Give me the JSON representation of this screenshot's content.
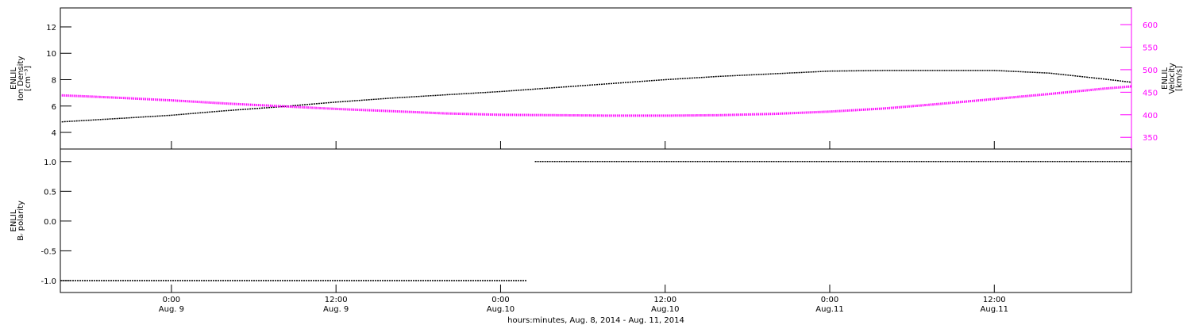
{
  "chart_data": [
    {
      "type": "line",
      "ylabel": [
        "ENLIL",
        "Ion Density",
        "[cm⁻³]"
      ],
      "y2label": [
        "ENLIL",
        "Velocity",
        "[km/s]"
      ],
      "xlim": [
        15.9,
        94
      ],
      "xticks": [
        24,
        36,
        48,
        60,
        72,
        84
      ],
      "ylim": [
        2.74,
        13.44
      ],
      "yticks": [
        4,
        6,
        8,
        10,
        12
      ],
      "y2lim": [
        324,
        637
      ],
      "y2ticks": [
        350,
        400,
        450,
        500,
        550,
        600
      ],
      "y2color": "#ff00ff",
      "x": [
        16,
        20,
        24,
        28,
        32,
        36,
        40,
        44,
        48,
        52,
        56,
        60,
        64,
        68,
        72,
        76,
        80,
        84,
        88,
        92,
        94
      ],
      "series": [
        {
          "color": "#000000",
          "values": [
            4.8,
            5.05,
            5.3,
            5.65,
            5.95,
            6.3,
            6.6,
            6.85,
            7.1,
            7.4,
            7.7,
            8.0,
            8.25,
            8.45,
            8.65,
            8.7,
            8.7,
            8.7,
            8.5,
            8.05,
            7.8
          ]
        },
        {
          "color": "#ff00ff",
          "axis": "y2",
          "values": [
            443,
            438,
            432,
            425,
            419,
            413,
            408,
            403,
            400,
            399,
            398,
            398,
            399,
            402,
            407,
            414,
            424,
            435,
            446,
            458,
            463
          ]
        }
      ]
    },
    {
      "type": "line",
      "ylabel": [
        "ENLIL",
        "Bᵣ polarity"
      ],
      "xlabel": "hours:minutes, Aug.  8, 2014 - Aug. 11, 2014",
      "xlim": [
        15.9,
        94
      ],
      "xticks": [
        {
          "value": 24,
          "label": [
            "0:00",
            "Aug. 9"
          ]
        },
        {
          "value": 36,
          "label": [
            "12:00",
            "Aug. 9"
          ]
        },
        {
          "value": 48,
          "label": [
            "0:00",
            "Aug.10"
          ]
        },
        {
          "value": 60,
          "label": [
            "12:00",
            "Aug.10"
          ]
        },
        {
          "value": 72,
          "label": [
            "0:00",
            "Aug.11"
          ]
        },
        {
          "value": 84,
          "label": [
            "12:00",
            "Aug.11"
          ]
        }
      ],
      "ylim": [
        -1.2,
        1.21
      ],
      "yticks": [
        {
          "value": -1,
          "label": "-1.0"
        },
        {
          "value": -0.5,
          "label": "-0.5"
        },
        {
          "value": 0,
          "label": "0.0"
        },
        {
          "value": 0.5,
          "label": "0.5"
        },
        {
          "value": 1,
          "label": "1.0"
        }
      ],
      "x": [
        15.9,
        49.9,
        50.2,
        50.5,
        94
      ],
      "series": [
        {
          "color": "#000000",
          "values": [
            -1,
            -1,
            null,
            1,
            1
          ]
        }
      ]
    }
  ]
}
